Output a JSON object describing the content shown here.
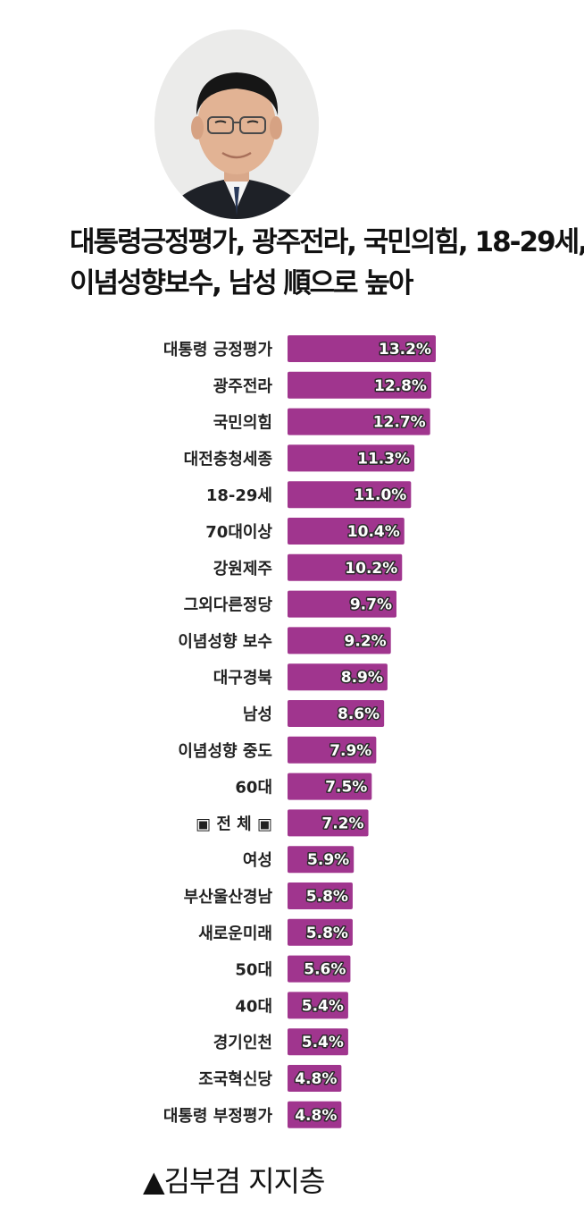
{
  "headline": {
    "line1": "대통령긍정평가, 광주전라, 국민의힘, 18-29세,",
    "line2": "이념성향보수, 남성 順으로 높아"
  },
  "caption": "▲김부겸 지지층",
  "colors": {
    "bar": "#a0358e",
    "background": "#ffffff"
  },
  "chart_data": {
    "type": "bar",
    "orientation": "horizontal",
    "unit": "%",
    "categories": [
      "대통령 긍정평가",
      "광주전라",
      "국민의힘",
      "대전충청세종",
      "18-29세",
      "70대이상",
      "강원제주",
      "그외다른정당",
      "이념성향 보수",
      "대구경북",
      "남성",
      "이념성향 중도",
      "60대",
      "▣ 전 체 ▣",
      "여성",
      "부산울산경남",
      "새로운미래",
      "50대",
      "40대",
      "경기인천",
      "조국혁신당",
      "대통령 부정평가"
    ],
    "values": [
      13.2,
      12.8,
      12.7,
      11.3,
      11.0,
      10.4,
      10.2,
      9.7,
      9.2,
      8.9,
      8.6,
      7.9,
      7.5,
      7.2,
      5.9,
      5.8,
      5.8,
      5.6,
      5.4,
      5.4,
      4.8,
      4.8
    ],
    "value_labels": [
      "13.2%",
      "12.8%",
      "12.7%",
      "11.3%",
      "11.0%",
      "10.4%",
      "10.2%",
      "9.7%",
      "9.2%",
      "8.9%",
      "8.6%",
      "7.9%",
      "7.5%",
      "7.2%",
      "5.9%",
      "5.8%",
      "5.8%",
      "5.6%",
      "5.4%",
      "5.4%",
      "4.8%",
      "4.8%"
    ],
    "xlim": [
      0,
      13.2
    ],
    "grid": false,
    "legend": "none"
  }
}
